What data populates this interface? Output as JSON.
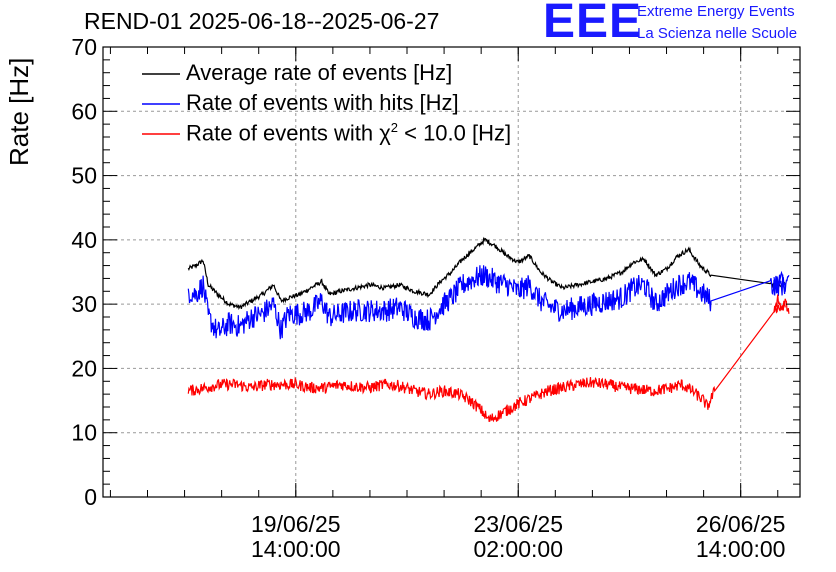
{
  "header": {
    "title": "REND-01 2025-06-18--2025-06-27",
    "logo_text": "EEE",
    "logo_line1": "Extreme Energy Events",
    "logo_line2": "La Scienza nelle Scuole"
  },
  "legend": {
    "entry1": "Average rate of events [Hz]",
    "entry2": "Rate of events with hits [Hz]",
    "entry3_prefix": "Rate of events with χ",
    "entry3_sup": "2",
    "entry3_suffix": " < 10.0 [Hz]"
  },
  "chart_data": {
    "type": "line",
    "title": "REND-01 2025-06-18--2025-06-27",
    "xlabel": "",
    "ylabel": "Rate [Hz]",
    "ylim": [
      0,
      70
    ],
    "yticks": [
      0,
      10,
      20,
      30,
      40,
      50,
      60,
      70
    ],
    "xlim_days_from_ref": [
      -2.6,
      6.8
    ],
    "xticks": [
      {
        "line1": "19/06/25",
        "line2": "14:00:00"
      },
      {
        "line1": "23/06/25",
        "line2": "02:00:00"
      },
      {
        "line1": "26/06/25",
        "line2": "14:00:00"
      }
    ],
    "grid": true,
    "legend_position": "top-left",
    "colors": {
      "avg": "#000000",
      "hits": "#0000ff",
      "chi2": "#ff0000"
    },
    "series": [
      {
        "name": "Average rate of events [Hz]",
        "color": "#000000",
        "points": [
          [
            -1.45,
            35.5
          ],
          [
            -1.35,
            36.0
          ],
          [
            -1.25,
            36.8
          ],
          [
            -1.18,
            33.0
          ],
          [
            -1.05,
            31.5
          ],
          [
            -0.9,
            30.0
          ],
          [
            -0.75,
            29.5
          ],
          [
            -0.6,
            30.5
          ],
          [
            -0.45,
            31.5
          ],
          [
            -0.3,
            33.0
          ],
          [
            -0.2,
            30.5
          ],
          [
            -0.1,
            31.0
          ],
          [
            0.05,
            31.5
          ],
          [
            0.2,
            32.5
          ],
          [
            0.35,
            33.5
          ],
          [
            0.45,
            31.5
          ],
          [
            0.6,
            32.0
          ],
          [
            0.8,
            32.5
          ],
          [
            1.0,
            33.0
          ],
          [
            1.2,
            32.5
          ],
          [
            1.4,
            33.0
          ],
          [
            1.6,
            32.0
          ],
          [
            1.8,
            31.5
          ],
          [
            1.95,
            33.5
          ],
          [
            2.1,
            35.0
          ],
          [
            2.25,
            37.0
          ],
          [
            2.4,
            38.5
          ],
          [
            2.55,
            40.0
          ],
          [
            2.7,
            39.0
          ],
          [
            2.85,
            37.5
          ],
          [
            3.0,
            36.5
          ],
          [
            3.15,
            37.5
          ],
          [
            3.3,
            35.0
          ],
          [
            3.45,
            33.5
          ],
          [
            3.6,
            32.5
          ],
          [
            3.8,
            33.0
          ],
          [
            4.0,
            33.5
          ],
          [
            4.2,
            34.0
          ],
          [
            4.4,
            35.0
          ],
          [
            4.55,
            36.5
          ],
          [
            4.7,
            37.0
          ],
          [
            4.85,
            34.5
          ],
          [
            5.0,
            35.5
          ],
          [
            5.15,
            37.5
          ],
          [
            5.3,
            38.5
          ],
          [
            5.45,
            36.0
          ],
          [
            5.6,
            34.5
          ],
          [
            6.4,
            33.0
          ],
          [
            6.6,
            33.0
          ]
        ]
      },
      {
        "name": "Rate of events with hits [Hz]",
        "color": "#0000ff",
        "points": [
          [
            -1.45,
            32.0
          ],
          [
            -1.35,
            31.5
          ],
          [
            -1.25,
            33.0
          ],
          [
            -1.18,
            28.0
          ],
          [
            -1.05,
            25.5
          ],
          [
            -0.9,
            27.0
          ],
          [
            -0.75,
            26.5
          ],
          [
            -0.6,
            28.0
          ],
          [
            -0.45,
            28.5
          ],
          [
            -0.3,
            30.0
          ],
          [
            -0.2,
            26.0
          ],
          [
            -0.1,
            28.5
          ],
          [
            0.05,
            28.5
          ],
          [
            0.2,
            29.0
          ],
          [
            0.35,
            30.5
          ],
          [
            0.45,
            28.0
          ],
          [
            0.6,
            28.5
          ],
          [
            0.8,
            29.0
          ],
          [
            1.0,
            29.0
          ],
          [
            1.2,
            29.0
          ],
          [
            1.4,
            29.5
          ],
          [
            1.6,
            28.0
          ],
          [
            1.8,
            27.5
          ],
          [
            1.95,
            29.5
          ],
          [
            2.1,
            31.0
          ],
          [
            2.25,
            33.0
          ],
          [
            2.4,
            34.0
          ],
          [
            2.55,
            34.5
          ],
          [
            2.7,
            33.5
          ],
          [
            2.85,
            33.0
          ],
          [
            3.0,
            32.0
          ],
          [
            3.15,
            33.0
          ],
          [
            3.3,
            30.5
          ],
          [
            3.45,
            29.5
          ],
          [
            3.6,
            29.0
          ],
          [
            3.8,
            29.5
          ],
          [
            4.0,
            30.0
          ],
          [
            4.2,
            30.5
          ],
          [
            4.4,
            31.0
          ],
          [
            4.55,
            32.5
          ],
          [
            4.7,
            33.0
          ],
          [
            4.85,
            30.0
          ],
          [
            5.0,
            31.5
          ],
          [
            5.15,
            33.0
          ],
          [
            5.3,
            33.5
          ],
          [
            5.45,
            32.0
          ],
          [
            5.6,
            30.5
          ],
          [
            6.4,
            33.0
          ],
          [
            6.6,
            33.0
          ]
        ]
      },
      {
        "name": "Rate of events with χ2 < 10.0 [Hz]",
        "color": "#ff0000",
        "points": [
          [
            -1.45,
            16.5
          ],
          [
            -1.3,
            16.8
          ],
          [
            -1.15,
            17.2
          ],
          [
            -1.0,
            17.5
          ],
          [
            -0.8,
            17.5
          ],
          [
            -0.6,
            17.0
          ],
          [
            -0.4,
            17.5
          ],
          [
            -0.2,
            17.5
          ],
          [
            0.0,
            17.5
          ],
          [
            0.2,
            17.0
          ],
          [
            0.4,
            17.0
          ],
          [
            0.6,
            17.5
          ],
          [
            0.8,
            17.2
          ],
          [
            1.0,
            17.0
          ],
          [
            1.2,
            17.5
          ],
          [
            1.4,
            17.3
          ],
          [
            1.6,
            16.5
          ],
          [
            1.8,
            16.0
          ],
          [
            2.0,
            16.5
          ],
          [
            2.2,
            16.0
          ],
          [
            2.35,
            15.0
          ],
          [
            2.5,
            13.5
          ],
          [
            2.6,
            12.0
          ],
          [
            2.7,
            12.5
          ],
          [
            2.85,
            13.5
          ],
          [
            3.0,
            14.5
          ],
          [
            3.2,
            15.5
          ],
          [
            3.4,
            16.5
          ],
          [
            3.6,
            17.0
          ],
          [
            3.8,
            17.5
          ],
          [
            4.0,
            17.8
          ],
          [
            4.2,
            17.5
          ],
          [
            4.4,
            17.0
          ],
          [
            4.6,
            16.8
          ],
          [
            4.8,
            16.5
          ],
          [
            5.0,
            16.8
          ],
          [
            5.2,
            17.5
          ],
          [
            5.35,
            16.5
          ],
          [
            5.5,
            15.0
          ],
          [
            5.55,
            14.0
          ],
          [
            5.65,
            16.5
          ],
          [
            6.45,
            29.5
          ],
          [
            6.6,
            29.5
          ]
        ]
      },
      {
        "name": "Rate of events with hits [Hz]",
        "color": "#0000ff",
        "points": [
          [
            6.45,
            34.0
          ],
          [
            6.5,
            32.0
          ],
          [
            6.55,
            35.0
          ],
          [
            6.6,
            32.5
          ],
          [
            6.65,
            34.5
          ]
        ]
      },
      {
        "name": "Rate of events with χ2 < 10.0 [Hz]",
        "color": "#ff0000",
        "points": [
          [
            6.45,
            28.5
          ],
          [
            6.5,
            31.0
          ],
          [
            6.55,
            29.0
          ],
          [
            6.6,
            30.5
          ],
          [
            6.65,
            28.5
          ]
        ]
      }
    ]
  }
}
